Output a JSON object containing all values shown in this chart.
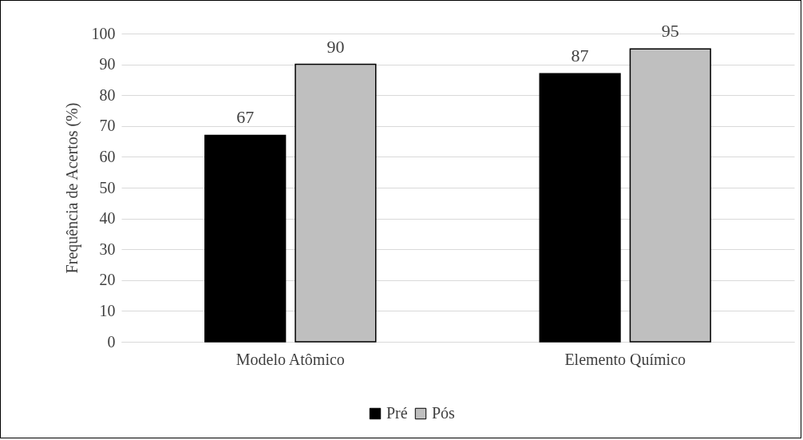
{
  "chart_data": {
    "type": "bar",
    "ylabel": "Frequência de Acertos (%)",
    "categories": [
      "Modelo Atômico",
      "Elemento Químico"
    ],
    "series": [
      {
        "name": "Pré",
        "color": "#000000",
        "values": [
          67,
          87
        ]
      },
      {
        "name": "Pós",
        "color": "#bfbfbf",
        "values": [
          90,
          95
        ]
      }
    ],
    "ylim": [
      0,
      100
    ],
    "yticks": [
      0,
      10,
      20,
      30,
      40,
      50,
      60,
      70,
      80,
      90,
      100
    ],
    "grid": "y",
    "legend": "bottom",
    "data_labels": true
  }
}
